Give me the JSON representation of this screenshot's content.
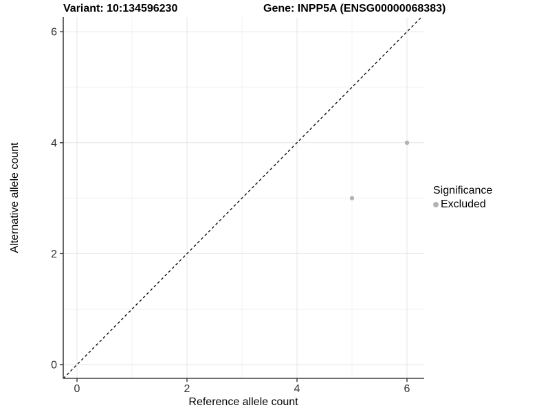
{
  "chart_data": {
    "type": "scatter",
    "title_variant": "Variant: 10:134596230",
    "title_gene": "Gene: INPP5A (ENSG00000068383)",
    "xlabel": "Reference allele count",
    "ylabel": "Alternative allele count",
    "xlim": [
      -0.25,
      6.3125
    ],
    "ylim": [
      -0.25,
      6.26
    ],
    "xticks": [
      0,
      2,
      4,
      6
    ],
    "yticks": [
      0,
      2,
      4,
      6
    ],
    "minor_xticks": [
      1,
      3,
      5
    ],
    "minor_yticks": [
      1,
      3,
      5
    ],
    "grid": "major-and-minor",
    "series": [
      {
        "name": "Excluded",
        "color": "#b3b3b3",
        "points": [
          {
            "x": 5,
            "y": 3
          },
          {
            "x": 6,
            "y": 4
          }
        ]
      }
    ],
    "reference_line": {
      "kind": "identity-diagonal",
      "style": "dashed",
      "color": "#000000"
    },
    "legend": {
      "title": "Significance",
      "position": "right",
      "items": [
        {
          "label": "Excluded",
          "color": "#b3b3b3"
        }
      ]
    }
  },
  "colors": {
    "background": "#ffffff",
    "grid_major": "#e5e5e5",
    "grid_minor": "#f0f0f0",
    "axis_line": "#404040",
    "tick_mark": "#333333",
    "tick_label": "#333333",
    "point": "#b3b3b3"
  }
}
